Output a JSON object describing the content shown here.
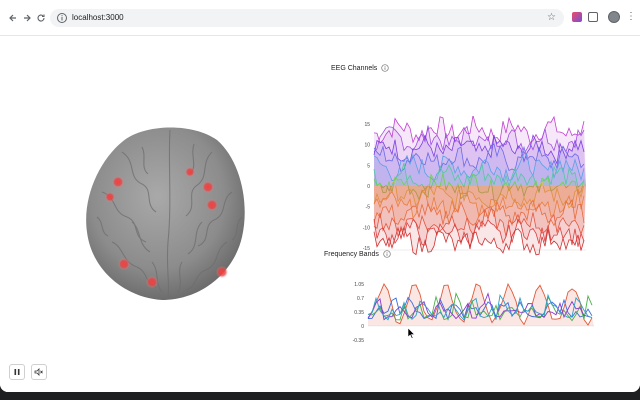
{
  "browser": {
    "url": "localhost:3000",
    "back_icon": "arrow-left-icon",
    "forward_icon": "arrow-right-icon",
    "reload_icon": "reload-icon",
    "bookmark_icon": "star-icon"
  },
  "panels": {
    "eeg_title": "EEG Channels",
    "freq_title": "Frequency Bands"
  },
  "chart_data": [
    {
      "type": "line",
      "title": "EEG Channels",
      "y_ticks": [
        "15",
        "10",
        "5",
        "0",
        "-5",
        "-10",
        "-15"
      ],
      "ylim": [
        -15,
        15
      ],
      "grid": false,
      "series_colors": [
        "#c040d0",
        "#a050e0",
        "#7a40e0",
        "#6a6ae8",
        "#5aa0e8",
        "#50c8a0",
        "#70d050",
        "#e0c040",
        "#f0a040",
        "#f08040",
        "#e86040",
        "#e04040",
        "#d03030"
      ]
    },
    {
      "type": "line",
      "title": "Frequency Bands",
      "y_ticks": [
        "1.05",
        "0.7",
        "0.35",
        "0",
        "-0.35"
      ],
      "ylim": [
        -0.35,
        1.05
      ],
      "grid": false,
      "series_colors": [
        "#e05a3a",
        "#3a6ae0",
        "#4ab04a",
        "#8a3ad0",
        "#2aa0c8"
      ]
    }
  ],
  "controls": {
    "pause_icon": "pause-icon",
    "mute_icon": "speaker-mute-icon"
  }
}
